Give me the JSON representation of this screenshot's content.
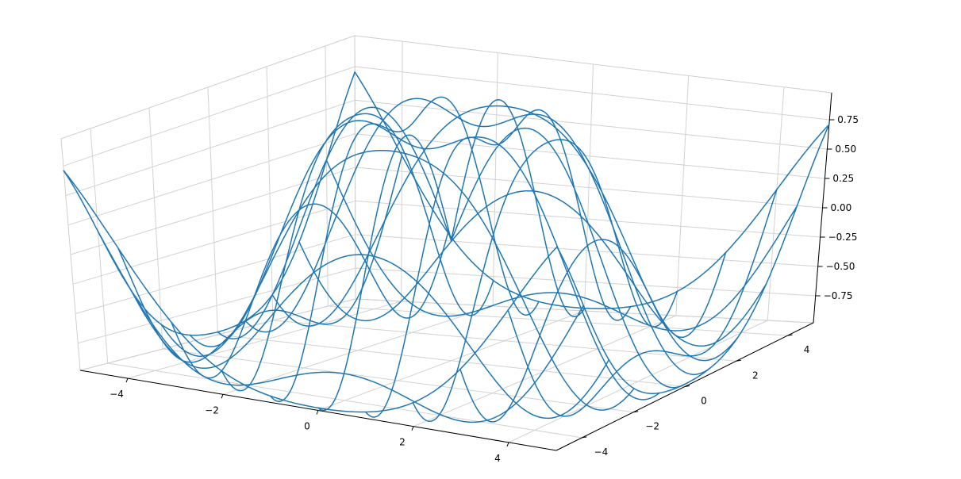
{
  "chart_data": {
    "type": "wireframe-3d",
    "surface": "z = sin(sqrt(x^2 + y^2))",
    "x": {
      "min": -5,
      "max": 5
    },
    "y": {
      "min": -5,
      "max": 5
    },
    "zlim": [
      -0.98,
      0.98
    ],
    "grid_lines_per_axis": 11,
    "x_ticks": [
      -4,
      -2,
      0,
      2,
      4
    ],
    "y_ticks": [
      -4,
      -2,
      0,
      2,
      4
    ],
    "z_ticks": [
      -0.75,
      -0.5,
      -0.25,
      0.0,
      0.25,
      0.5,
      0.75
    ],
    "x_tick_labels": [
      "−4",
      "−2",
      "0",
      "2",
      "4"
    ],
    "y_tick_labels": [
      "−4",
      "−2",
      "0",
      "2",
      "4"
    ],
    "z_tick_labels": [
      "−0.75",
      "−0.50",
      "−0.25",
      "0.00",
      "0.25",
      "0.50",
      "0.75"
    ],
    "title": "",
    "xlabel": "",
    "ylabel": "",
    "zlabel": "",
    "grid": true,
    "colors": {
      "wire": "#1f77b4",
      "pane_floor": "#f2f2f2",
      "pane_left": "#f7f7f7",
      "pane_back": "#f0f0f0"
    }
  }
}
